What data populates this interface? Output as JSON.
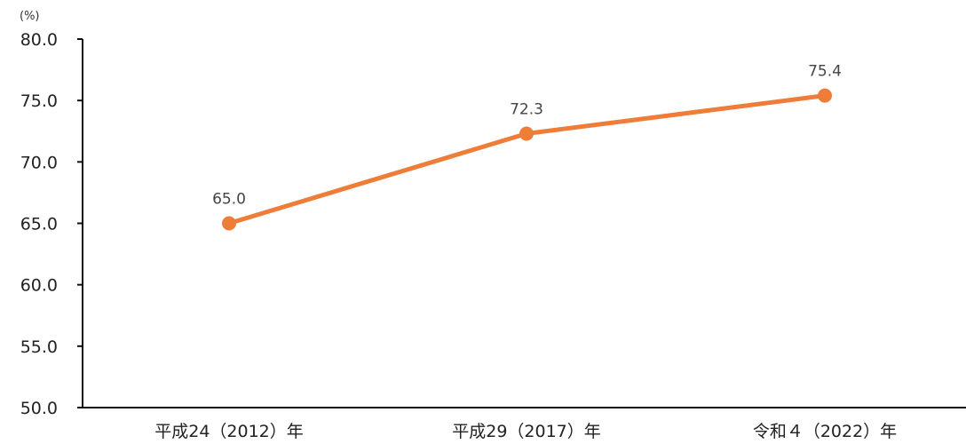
{
  "chart_data": {
    "type": "line",
    "title": "",
    "xlabel": "",
    "ylabel": "(%)",
    "ylim": [
      50,
      80
    ],
    "yticks": [
      50,
      55,
      60,
      65,
      70,
      75,
      80
    ],
    "ytick_labels": [
      "50.0",
      "55.0",
      "60.0",
      "65.0",
      "70.0",
      "75.0",
      "80.0"
    ],
    "categories": [
      "平成24（2012）年",
      "平成29（2017）年",
      "令和４（2022）年"
    ],
    "series": [
      {
        "values": [
          65.0,
          72.3,
          75.4
        ],
        "data_labels": [
          "65.0",
          "72.3",
          "75.4"
        ],
        "color": "#ee7d3a"
      }
    ],
    "grid": false,
    "legend": "none"
  }
}
